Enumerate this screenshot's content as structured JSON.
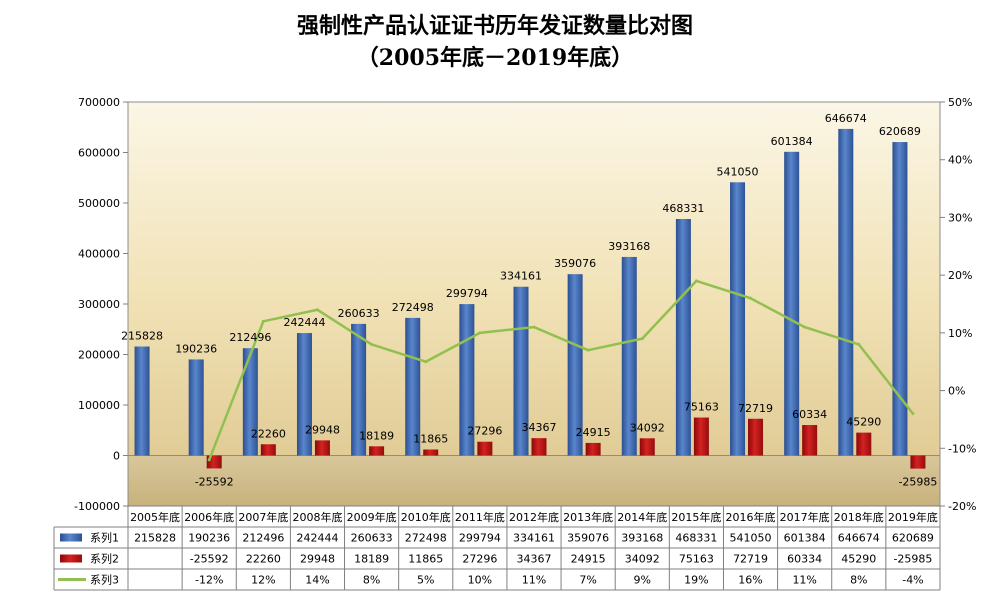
{
  "chart_data": {
    "type": "bar",
    "title": "强制性产品认证证书历年发证数量比对图",
    "subtitle": "（2005年底－2019年底）",
    "categories": [
      "2005年底",
      "2006年底",
      "2007年底",
      "2008年底",
      "2009年底",
      "2010年底",
      "2011年底",
      "2012年底",
      "2013年底",
      "2014年底",
      "2015年底",
      "2016年底",
      "2017年底",
      "2018年底",
      "2019年底"
    ],
    "series": [
      {
        "name": "系列1",
        "kind": "bar",
        "axis": "left",
        "color": "#3a63a8",
        "values": [
          215828,
          190236,
          212496,
          242444,
          260633,
          272498,
          299794,
          334161,
          359076,
          393168,
          468331,
          541050,
          601384,
          646674,
          620689
        ]
      },
      {
        "name": "系列2",
        "kind": "bar",
        "axis": "left",
        "color": "#b01010",
        "values": [
          null,
          -25592,
          22260,
          29948,
          18189,
          11865,
          27296,
          34367,
          24915,
          34092,
          75163,
          72719,
          60334,
          45290,
          -25985
        ]
      },
      {
        "name": "系列3",
        "kind": "line",
        "axis": "right",
        "color": "#92c050",
        "values": [
          null,
          -12,
          12,
          14,
          8,
          5,
          10,
          11,
          7,
          9,
          19,
          16,
          11,
          8,
          -4
        ]
      }
    ],
    "table_values": [
      [
        "215828",
        "190236",
        "212496",
        "242444",
        "260633",
        "272498",
        "299794",
        "334161",
        "359076",
        "393168",
        "468331",
        "541050",
        "601384",
        "646674",
        "620689"
      ],
      [
        "",
        "-25592",
        "22260",
        "29948",
        "18189",
        "11865",
        "27296",
        "34367",
        "24915",
        "34092",
        "75163",
        "72719",
        "60334",
        "45290",
        "-25985"
      ],
      [
        "",
        "-12%",
        "12%",
        "14%",
        "8%",
        "5%",
        "10%",
        "11%",
        "7%",
        "9%",
        "19%",
        "16%",
        "11%",
        "8%",
        "-4%"
      ]
    ],
    "ylim": [
      -100000,
      700000
    ],
    "yticks": [
      "700000",
      "600000",
      "500000",
      "400000",
      "300000",
      "200000",
      "100000",
      "0",
      "-100000"
    ],
    "y2lim": [
      -20,
      50
    ],
    "y2ticks": [
      "50%",
      "40%",
      "30%",
      "20%",
      "10%",
      "0%",
      "-10%",
      "-20%"
    ],
    "grid": false,
    "legend": "data-table"
  }
}
